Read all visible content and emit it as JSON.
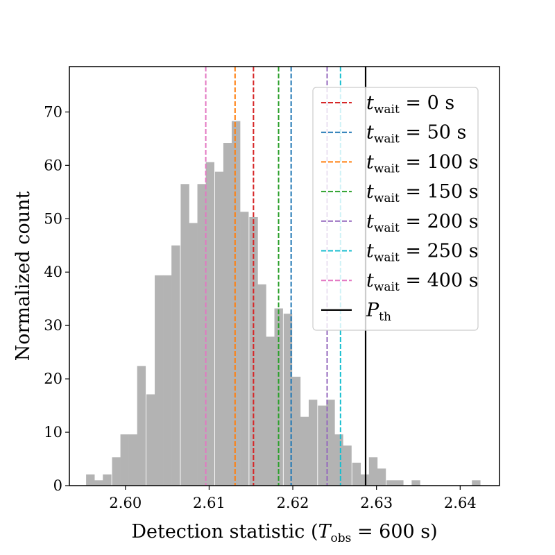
{
  "chart_data": {
    "type": "bar",
    "subtype": "histogram",
    "xlabel": "Detection statistic (T_obs = 600 s)",
    "xlabel_main": "Detection statistic (",
    "xlabel_var": "T",
    "xlabel_sub": "obs",
    "xlabel_tail": " = 600 s)",
    "ylabel": "Normalized count",
    "xlim": [
      2.5933,
      2.6447
    ],
    "ylim": [
      0,
      78.5
    ],
    "x_ticks": [
      2.6,
      2.61,
      2.62,
      2.63,
      2.64
    ],
    "x_tick_labels": [
      "2.60",
      "2.61",
      "2.62",
      "2.63",
      "2.64"
    ],
    "y_ticks": [
      0,
      10,
      20,
      30,
      40,
      50,
      60,
      70
    ],
    "y_tick_labels": [
      "0",
      "10",
      "20",
      "30",
      "40",
      "50",
      "60",
      "70"
    ],
    "grid": false,
    "bar_color": "#b3b3b3",
    "bin_left_edges": [
      2.5953,
      2.5963,
      2.5973,
      2.5984,
      2.5994,
      2.6004,
      2.6014,
      2.6025,
      2.6035,
      2.6045,
      2.6055,
      2.6066,
      2.6076,
      2.6086,
      2.6096,
      2.6107,
      2.6117,
      2.6127,
      2.6137,
      2.6148,
      2.6158,
      2.6168,
      2.6178,
      2.6189,
      2.6199,
      2.6209,
      2.6219,
      2.623,
      2.624,
      2.625,
      2.626,
      2.6271,
      2.6281,
      2.6291,
      2.6301,
      2.6312,
      2.6322,
      2.6332,
      2.6342,
      2.6353,
      2.6363,
      2.6373,
      2.6383,
      2.6394,
      2.6404,
      2.6414
    ],
    "bin_width": 0.001025,
    "values": [
      2.1,
      1.0,
      2.1,
      5.3,
      9.6,
      9.6,
      22.4,
      17.1,
      39.4,
      39.4,
      45.0,
      56.5,
      49.2,
      56.5,
      60.6,
      58.8,
      64.2,
      68.3,
      51.3,
      50.3,
      37.7,
      27.9,
      33.2,
      32.2,
      20.4,
      12.9,
      16.1,
      15.0,
      16.1,
      9.6,
      7.5,
      4.3,
      2.1,
      5.3,
      3.2,
      1.0,
      1.0,
      0.0,
      1.0,
      0.0,
      0.0,
      0.0,
      0.0,
      0.0,
      0.0,
      1.0
    ],
    "vlines": [
      {
        "name": "t_wait = 0 s",
        "x": 2.6153,
        "color": "#d62728",
        "style": "dashed",
        "label_main": "t",
        "label_sub": "wait",
        "label_value": " = 0 s"
      },
      {
        "name": "t_wait = 50 s",
        "x": 2.6198,
        "color": "#1f77b4",
        "style": "dashed",
        "label_main": "t",
        "label_sub": "wait",
        "label_value": " = 50 s"
      },
      {
        "name": "t_wait = 100 s",
        "x": 2.6131,
        "color": "#ff7f0e",
        "style": "dashed",
        "label_main": "t",
        "label_sub": "wait",
        "label_value": " = 100 s"
      },
      {
        "name": "t_wait = 150 s",
        "x": 2.6183,
        "color": "#2ca02c",
        "style": "dashed",
        "label_main": "t",
        "label_sub": "wait",
        "label_value": " = 150 s"
      },
      {
        "name": "t_wait = 200 s",
        "x": 2.6241,
        "color": "#9467bd",
        "style": "dashed",
        "label_main": "t",
        "label_sub": "wait",
        "label_value": " = 200 s"
      },
      {
        "name": "t_wait = 250 s",
        "x": 2.6257,
        "color": "#17becf",
        "style": "dashed",
        "label_main": "t",
        "label_sub": "wait",
        "label_value": " = 250 s"
      },
      {
        "name": "t_wait = 400 s",
        "x": 2.6096,
        "color": "#e377c2",
        "style": "dashed",
        "label_main": "t",
        "label_sub": "wait",
        "label_value": " = 400 s"
      },
      {
        "name": "P_th",
        "x": 2.6287,
        "color": "#000000",
        "style": "solid",
        "label_main": "P",
        "label_sub": "th",
        "label_value": ""
      }
    ],
    "legend_position": "upper right"
  }
}
